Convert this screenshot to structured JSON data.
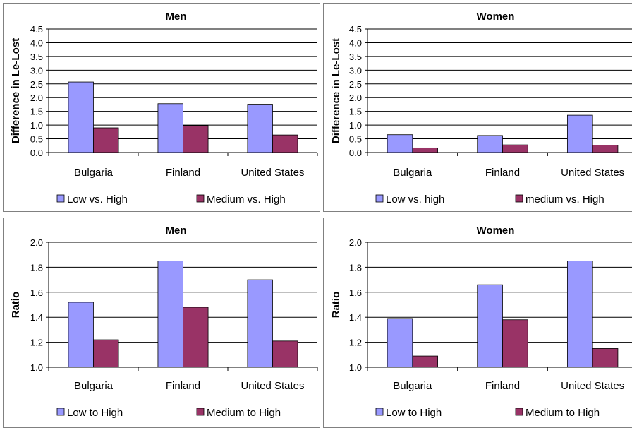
{
  "colors": {
    "series1": "#9999FF",
    "series2": "#993366",
    "axis": "#000000",
    "grid": "#000000",
    "border": "#808080"
  },
  "chart_data": [
    {
      "type": "bar",
      "title": "Men",
      "ylabel": "Difference in Le-Lost",
      "xlabel": "",
      "categories": [
        "Bulgaria",
        "Finland",
        "United States"
      ],
      "series": [
        {
          "name": "Low vs. High",
          "values": [
            2.57,
            1.78,
            1.76
          ]
        },
        {
          "name": "Medium vs. High",
          "values": [
            0.9,
            0.98,
            0.64
          ]
        }
      ],
      "ylim": [
        0,
        4.5
      ],
      "yticks": [
        "0.0",
        "0.5",
        "1.0",
        "1.5",
        "2.0",
        "2.5",
        "3.0",
        "3.5",
        "4.0",
        "4.5"
      ],
      "grid": true,
      "legend": "bottom"
    },
    {
      "type": "bar",
      "title": "Women",
      "ylabel": "Difference in Le-Lost",
      "xlabel": "",
      "categories": [
        "Bulgaria",
        "Finland",
        "United States"
      ],
      "series": [
        {
          "name": "Low vs. high",
          "values": [
            0.65,
            0.62,
            1.36
          ]
        },
        {
          "name": "medium vs. High",
          "values": [
            0.17,
            0.28,
            0.27
          ]
        }
      ],
      "ylim": [
        0,
        4.5
      ],
      "yticks": [
        "0.0",
        "0.5",
        "1.0",
        "1.5",
        "2.0",
        "2.5",
        "3.0",
        "3.5",
        "4.0",
        "4.5"
      ],
      "grid": true,
      "legend": "bottom"
    },
    {
      "type": "bar",
      "title": "Men",
      "ylabel": "Ratio",
      "xlabel": "",
      "categories": [
        "Bulgaria",
        "Finland",
        "United States"
      ],
      "series": [
        {
          "name": "Low to High",
          "values": [
            1.52,
            1.85,
            1.7
          ]
        },
        {
          "name": "Medium to High",
          "values": [
            1.22,
            1.48,
            1.21
          ]
        }
      ],
      "ylim": [
        1.0,
        2.0
      ],
      "yticks": [
        "1.0",
        "1.2",
        "1.4",
        "1.6",
        "1.8",
        "2.0"
      ],
      "grid": true,
      "legend": "bottom"
    },
    {
      "type": "bar",
      "title": "Women",
      "ylabel": "Ratio",
      "xlabel": "",
      "categories": [
        "Bulgaria",
        "Finland",
        "United States"
      ],
      "series": [
        {
          "name": "Low to High",
          "values": [
            1.39,
            1.66,
            1.85
          ]
        },
        {
          "name": "Medium to High",
          "values": [
            1.09,
            1.38,
            1.15
          ]
        }
      ],
      "ylim": [
        1.0,
        2.0
      ],
      "yticks": [
        "1.0",
        "1.2",
        "1.4",
        "1.6",
        "1.8",
        "2.0"
      ],
      "grid": true,
      "legend": "bottom"
    }
  ]
}
